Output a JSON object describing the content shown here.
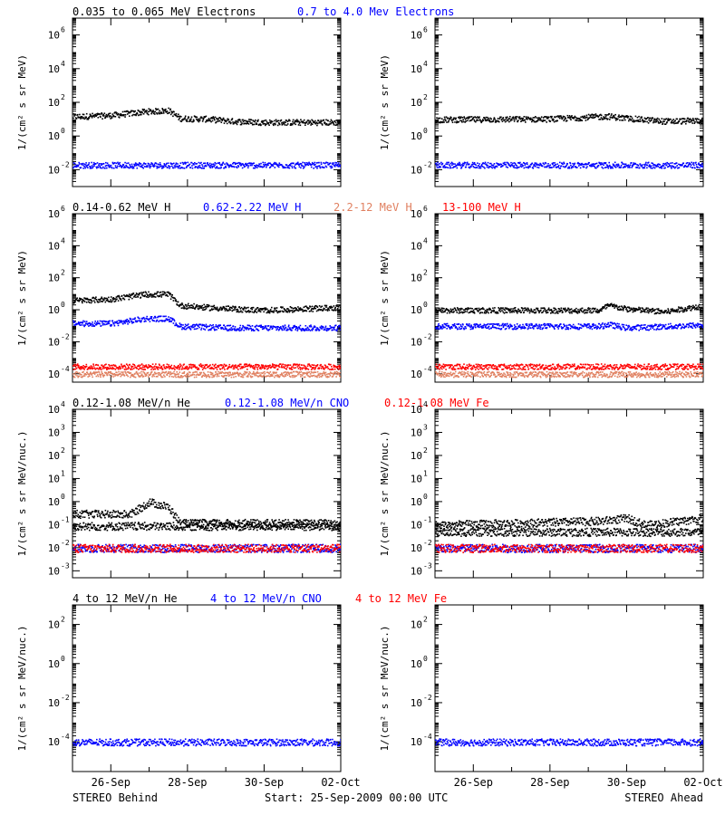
{
  "chart_data": {
    "type": "scatter",
    "time_axis": {
      "range": [
        "2009-09-25",
        "2009-10-02"
      ],
      "tick_labels": [
        {
          "date": "2009-09-26",
          "label": "26-Sep"
        },
        {
          "date": "2009-09-28",
          "label": "28-Sep"
        },
        {
          "date": "2009-09-30",
          "label": "30-Sep"
        },
        {
          "date": "2009-10-02",
          "label": "02-Oct"
        }
      ]
    },
    "footer": {
      "left": "STEREO Behind",
      "center": "Start: 25-Sep-2009 00:00 UTC",
      "right": "STEREO Ahead"
    },
    "panels": [
      {
        "ylabel": "1/(cm² s sr MeV)",
        "yscale": "log",
        "ylim": [
          0.001,
          10000000
        ],
        "ytick_exponents": [
          -2,
          0,
          2,
          4,
          6
        ],
        "legend": [
          {
            "text": "0.035 to 0.065 MeV Electrons",
            "color": "#000000"
          },
          {
            "text": "0.7 to 4.0 Mev Electrons",
            "color": "#0000ff"
          }
        ],
        "series": [
          {
            "color": "#000000",
            "spacecraft": "STEREO Behind",
            "levels": [
              [
                0,
                15
              ],
              [
                1,
                18
              ],
              [
                1.9,
                30
              ],
              [
                2.5,
                35
              ],
              [
                2.8,
                12
              ],
              [
                3.5,
                11
              ],
              [
                4.2,
                8
              ],
              [
                5,
                7
              ],
              [
                7,
                7
              ]
            ]
          },
          {
            "color": "#0000ff",
            "spacecraft": "STEREO Behind",
            "levels": [
              [
                0,
                0.02
              ],
              [
                7,
                0.02
              ]
            ]
          },
          {
            "color": "#000000",
            "spacecraft": "STEREO Ahead",
            "levels": [
              [
                0,
                10
              ],
              [
                3,
                11
              ],
              [
                4.5,
                16
              ],
              [
                5,
                12
              ],
              [
                6,
                8
              ],
              [
                7,
                9
              ]
            ]
          },
          {
            "color": "#0000ff",
            "spacecraft": "STEREO Ahead",
            "levels": [
              [
                0,
                0.02
              ],
              [
                7,
                0.02
              ]
            ]
          }
        ]
      },
      {
        "ylabel": "1/(cm² s sr MeV)",
        "yscale": "log",
        "ylim": [
          3e-05,
          1000000
        ],
        "ytick_exponents": [
          -4,
          -2,
          0,
          2,
          4,
          6
        ],
        "legend": [
          {
            "text": "0.14-0.62 MeV H",
            "color": "#000000"
          },
          {
            "text": "0.62-2.22 MeV H",
            "color": "#0000ff"
          },
          {
            "text": "2.2-12 MeV H",
            "color": "#e08060"
          },
          {
            "text": "13-100 MeV H",
            "color": "#ff0000"
          }
        ],
        "series": [
          {
            "color": "#000000",
            "spacecraft": "STEREO Behind",
            "levels": [
              [
                0,
                4
              ],
              [
                1,
                5
              ],
              [
                1.9,
                10
              ],
              [
                2.5,
                10
              ],
              [
                2.8,
                2
              ],
              [
                3.5,
                1.5
              ],
              [
                4.2,
                1.2
              ],
              [
                5,
                1.0
              ],
              [
                7,
                1.5
              ]
            ]
          },
          {
            "color": "#0000ff",
            "spacecraft": "STEREO Behind",
            "levels": [
              [
                0,
                0.15
              ],
              [
                1,
                0.15
              ],
              [
                1.9,
                0.3
              ],
              [
                2.5,
                0.3
              ],
              [
                2.8,
                0.1
              ],
              [
                4,
                0.08
              ],
              [
                7,
                0.08
              ]
            ]
          },
          {
            "color": "#ff0000",
            "spacecraft": "STEREO Behind",
            "levels": [
              [
                0,
                0.0003
              ],
              [
                7,
                0.0003
              ]
            ]
          },
          {
            "color": "#e08060",
            "spacecraft": "STEREO Behind",
            "levels": [
              [
                0,
                0.0001
              ],
              [
                7,
                0.0001
              ]
            ]
          },
          {
            "color": "#000000",
            "spacecraft": "STEREO Ahead",
            "levels": [
              [
                0,
                1.0
              ],
              [
                4.3,
                1.0
              ],
              [
                4.5,
                2
              ],
              [
                5,
                1.2
              ],
              [
                6,
                0.8
              ],
              [
                7,
                2
              ]
            ]
          },
          {
            "color": "#0000ff",
            "spacecraft": "STEREO Ahead",
            "levels": [
              [
                0,
                0.1
              ],
              [
                4.3,
                0.1
              ],
              [
                4.5,
                0.13
              ],
              [
                5,
                0.08
              ],
              [
                7,
                0.12
              ]
            ]
          },
          {
            "color": "#ff0000",
            "spacecraft": "STEREO Ahead",
            "levels": [
              [
                0,
                0.0003
              ],
              [
                7,
                0.0003
              ]
            ]
          },
          {
            "color": "#e08060",
            "spacecraft": "STEREO Ahead",
            "levels": [
              [
                0,
                0.0001
              ],
              [
                7,
                0.0001
              ]
            ]
          }
        ]
      },
      {
        "ylabel": "1/(cm² s sr MeV/nuc.)",
        "yscale": "log",
        "ylim": [
          0.0005,
          10000
        ],
        "ytick_exponents": [
          -3,
          -2,
          -1,
          0,
          1,
          2,
          3,
          4
        ],
        "legend": [
          {
            "text": "0.12-1.08 MeV/n He",
            "color": "#000000"
          },
          {
            "text": "0.12-1.08 MeV/n CNO",
            "color": "#0000ff"
          },
          {
            "text": "0.12-1.08 MeV Fe",
            "color": "#ff0000"
          }
        ],
        "series": [
          {
            "color": "#000000",
            "spacecraft": "STEREO Behind",
            "levels": [
              [
                0,
                0.3
              ],
              [
                1.5,
                0.3
              ],
              [
                2,
                1.0
              ],
              [
                2.5,
                0.6
              ],
              [
                2.8,
                0.12
              ],
              [
                7,
                0.12
              ]
            ]
          },
          {
            "color": "#000000",
            "spacecraft": "STEREO Behind",
            "levels": [
              [
                0,
                0.09
              ],
              [
                7,
                0.09
              ]
            ]
          },
          {
            "color": "#0000ff",
            "spacecraft": "STEREO Behind",
            "levels": [
              [
                0,
                0.01
              ],
              [
                7,
                0.01
              ]
            ]
          },
          {
            "color": "#ff0000",
            "spacecraft": "STEREO Behind",
            "levels": [
              [
                0,
                0.01
              ],
              [
                7,
                0.01
              ]
            ]
          },
          {
            "color": "#000000",
            "spacecraft": "STEREO Ahead",
            "levels": [
              [
                0,
                0.1
              ],
              [
                4.3,
                0.15
              ],
              [
                5,
                0.2
              ],
              [
                5.5,
                0.1
              ],
              [
                7,
                0.2
              ]
            ]
          },
          {
            "color": "#000000",
            "spacecraft": "STEREO Ahead",
            "levels": [
              [
                0,
                0.05
              ],
              [
                7,
                0.05
              ]
            ]
          },
          {
            "color": "#0000ff",
            "spacecraft": "STEREO Ahead",
            "levels": [
              [
                0,
                0.01
              ],
              [
                7,
                0.01
              ]
            ]
          },
          {
            "color": "#ff0000",
            "spacecraft": "STEREO Ahead",
            "levels": [
              [
                0,
                0.01
              ],
              [
                7,
                0.01
              ]
            ]
          }
        ]
      },
      {
        "ylabel": "1/(cm² s sr MeV/nuc.)",
        "yscale": "log",
        "ylim": [
          3e-06,
          1000
        ],
        "ytick_exponents": [
          -4,
          -2,
          0,
          2
        ],
        "legend": [
          {
            "text": "4 to 12 MeV/n He",
            "color": "#000000"
          },
          {
            "text": "4 to 12 MeV/n CNO",
            "color": "#0000ff"
          },
          {
            "text": "4 to 12 MeV Fe",
            "color": "#ff0000"
          }
        ],
        "series": [
          {
            "color": "#0000ff",
            "spacecraft": "STEREO Behind",
            "levels": [
              [
                0,
                0.0001
              ],
              [
                7,
                0.0001
              ]
            ]
          },
          {
            "color": "#0000ff",
            "spacecraft": "STEREO Ahead",
            "levels": [
              [
                0,
                0.0001
              ],
              [
                7,
                0.0001
              ]
            ]
          }
        ]
      }
    ]
  }
}
